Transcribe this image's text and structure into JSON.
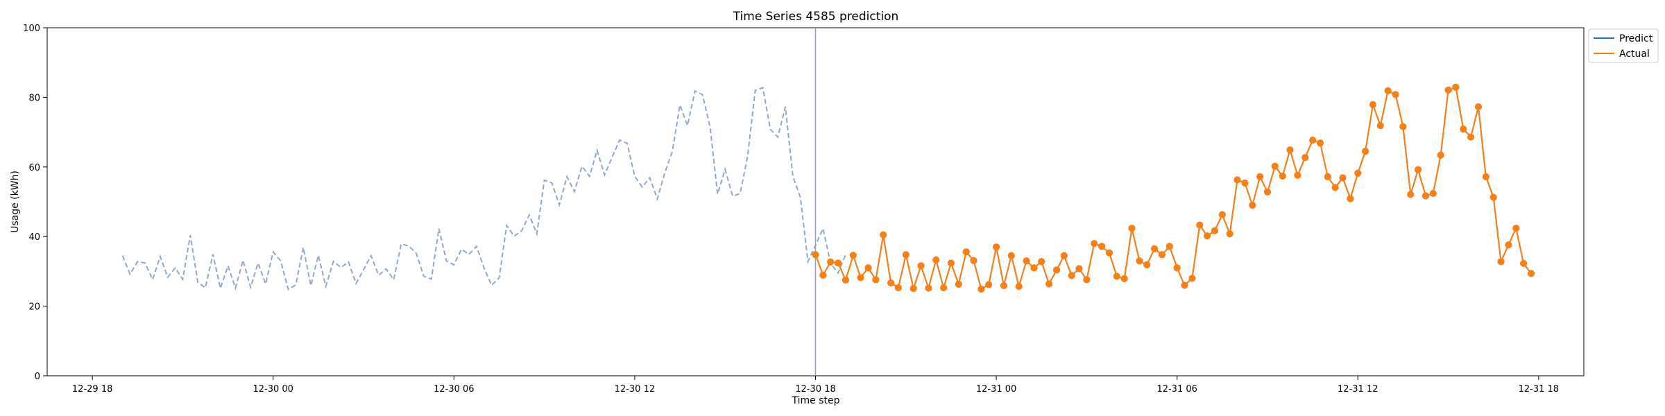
{
  "chart_data": {
    "type": "line",
    "title": "Time Series 4585 prediction",
    "xlabel": "Time step",
    "ylabel": "Usage (kWh)",
    "ylim": [
      0,
      100
    ],
    "yticks": [
      0,
      20,
      40,
      60,
      80,
      100
    ],
    "x_start": "12-29 19",
    "x_step_minutes": 15,
    "xticks": [
      {
        "label": "12-29 18",
        "offset_hours": -1
      },
      {
        "label": "12-30 00",
        "offset_hours": 5
      },
      {
        "label": "12-30 06",
        "offset_hours": 11
      },
      {
        "label": "12-30 12",
        "offset_hours": 17
      },
      {
        "label": "12-30 18",
        "offset_hours": 23
      },
      {
        "label": "12-31 00",
        "offset_hours": 29
      },
      {
        "label": "12-31 06",
        "offset_hours": 35
      },
      {
        "label": "12-31 12",
        "offset_hours": 41
      },
      {
        "label": "12-31 18",
        "offset_hours": 47
      }
    ],
    "prediction_start": "12-30 18",
    "history": {
      "style": "dashed",
      "color": "#8fa8c8",
      "values": [
        34.5,
        29.2,
        32.8,
        32.4,
        27.6,
        34.3,
        28.3,
        31.0,
        27.7,
        40.4,
        26.8,
        25.3,
        34.9,
        25.1,
        31.6,
        25.2,
        33.2,
        25.4,
        32.4,
        26.4,
        35.6,
        33.0,
        24.8,
        26.1,
        36.9,
        25.9,
        34.6,
        25.7,
        32.9,
        31.1,
        32.7,
        26.5,
        30.5,
        34.5,
        28.9,
        30.7,
        27.6,
        37.9,
        37.3,
        35.2,
        28.6,
        27.8,
        42.3,
        33.0,
        31.9,
        36.4,
        34.9,
        37.2,
        30.9,
        26.0,
        28.1,
        43.2,
        40.1,
        41.7,
        46.2,
        40.8,
        56.2,
        55.4,
        49.1,
        57.2,
        52.9,
        60.2,
        57.3,
        64.8,
        57.7,
        62.8,
        67.7,
        66.8,
        57.3,
        54.2,
        56.9,
        50.8,
        58.3,
        64.5,
        77.8,
        71.9,
        81.8,
        80.8,
        71.5,
        52.2,
        59.3,
        51.6,
        52.4,
        63.3,
        82.0,
        82.8,
        70.8,
        68.6,
        77.3,
        57.3,
        51.2,
        32.8,
        37.5,
        42.3,
        32.3,
        29.5,
        34.8
      ]
    },
    "series": [
      {
        "name": "Predict",
        "color": "#1f77b4",
        "values": [
          34.8,
          28.9,
          32.7,
          32.4,
          27.5,
          34.6,
          28.2,
          31.0,
          27.6,
          40.5,
          26.7,
          25.3,
          34.8,
          25.1,
          31.6,
          25.2,
          33.3,
          25.3,
          32.4,
          26.3,
          35.6,
          33.1,
          24.9,
          26.2,
          37.0,
          25.9,
          34.5,
          25.7,
          33.0,
          31.0,
          32.8,
          26.4,
          30.4,
          34.5,
          28.8,
          30.8,
          27.6,
          38.0,
          37.2,
          35.3,
          28.6,
          27.9,
          42.4,
          33.0,
          31.9,
          36.5,
          34.8,
          37.2,
          31.0,
          26.0,
          28.0,
          43.3,
          40.2,
          41.7,
          46.3,
          40.8,
          56.3,
          55.4,
          49.0,
          57.2,
          52.8,
          60.2,
          57.4,
          64.9,
          57.6,
          62.7,
          67.7,
          66.9,
          57.2,
          54.1,
          56.9,
          50.9,
          58.2,
          64.5,
          77.9,
          71.9,
          81.9,
          80.8,
          71.6,
          52.1,
          59.2,
          51.7,
          52.4,
          63.4,
          82.1,
          82.9,
          70.9,
          68.6,
          77.3,
          57.2,
          51.3,
          32.8,
          37.6,
          42.4,
          32.3,
          29.4
        ]
      },
      {
        "name": "Actual",
        "color": "#ff7f0e",
        "values": [
          34.8,
          28.9,
          32.7,
          32.4,
          27.5,
          34.6,
          28.2,
          31.0,
          27.6,
          40.5,
          26.7,
          25.3,
          34.8,
          25.1,
          31.6,
          25.2,
          33.3,
          25.3,
          32.4,
          26.3,
          35.6,
          33.1,
          24.9,
          26.2,
          37.0,
          25.9,
          34.5,
          25.7,
          33.0,
          31.0,
          32.8,
          26.4,
          30.4,
          34.5,
          28.8,
          30.8,
          27.6,
          38.0,
          37.2,
          35.3,
          28.6,
          27.9,
          42.4,
          33.0,
          31.9,
          36.5,
          34.8,
          37.2,
          31.0,
          26.0,
          28.0,
          43.3,
          40.2,
          41.7,
          46.3,
          40.8,
          56.3,
          55.4,
          49.0,
          57.2,
          52.8,
          60.2,
          57.4,
          64.9,
          57.6,
          62.7,
          67.7,
          66.9,
          57.2,
          54.1,
          56.9,
          50.9,
          58.2,
          64.5,
          77.9,
          71.9,
          81.9,
          80.8,
          71.6,
          52.1,
          59.2,
          51.7,
          52.4,
          63.4,
          82.1,
          82.9,
          70.9,
          68.6,
          77.3,
          57.2,
          51.3,
          32.8,
          37.6,
          42.4,
          32.3,
          29.4
        ]
      }
    ],
    "legend": {
      "placement": "top-right outside"
    },
    "grid": false
  }
}
